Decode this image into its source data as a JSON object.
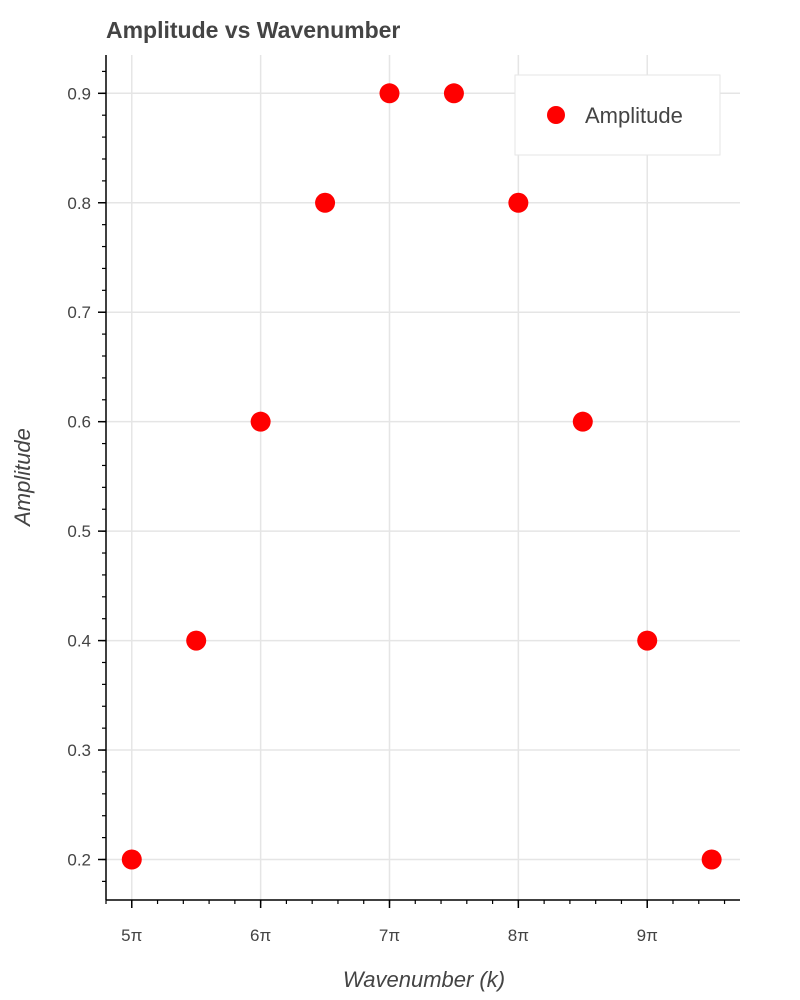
{
  "chart_data": {
    "type": "scatter",
    "title": "Amplitude vs Wavenumber",
    "xlabel": "Wavenumber (k)",
    "ylabel": "Amplitude",
    "x_unit": "π",
    "xlim": [
      4.8,
      9.72
    ],
    "ylim": [
      0.163,
      0.935
    ],
    "x_ticks": [
      5,
      6,
      7,
      8,
      9
    ],
    "x_tick_labels": [
      "5π",
      "6π",
      "7π",
      "8π",
      "9π"
    ],
    "x_minor_step": 0.2,
    "y_ticks": [
      0.2,
      0.3,
      0.4,
      0.5,
      0.6,
      0.7,
      0.8,
      0.9
    ],
    "y_tick_labels": [
      "0.2",
      "0.3",
      "0.4",
      "0.5",
      "0.6",
      "0.7",
      "0.8",
      "0.9"
    ],
    "y_minor_step": 0.02,
    "grid": true,
    "legend": {
      "position": "top-right",
      "entries": [
        "Amplitude"
      ]
    },
    "series": [
      {
        "name": "Amplitude",
        "color": "#ff0000",
        "x": [
          5,
          5.5,
          6,
          6.5,
          7,
          7.5,
          8,
          8.5,
          9,
          9.5
        ],
        "y": [
          0.2,
          0.4,
          0.6,
          0.8,
          0.9,
          0.9,
          0.8,
          0.6,
          0.4,
          0.2
        ]
      }
    ]
  }
}
